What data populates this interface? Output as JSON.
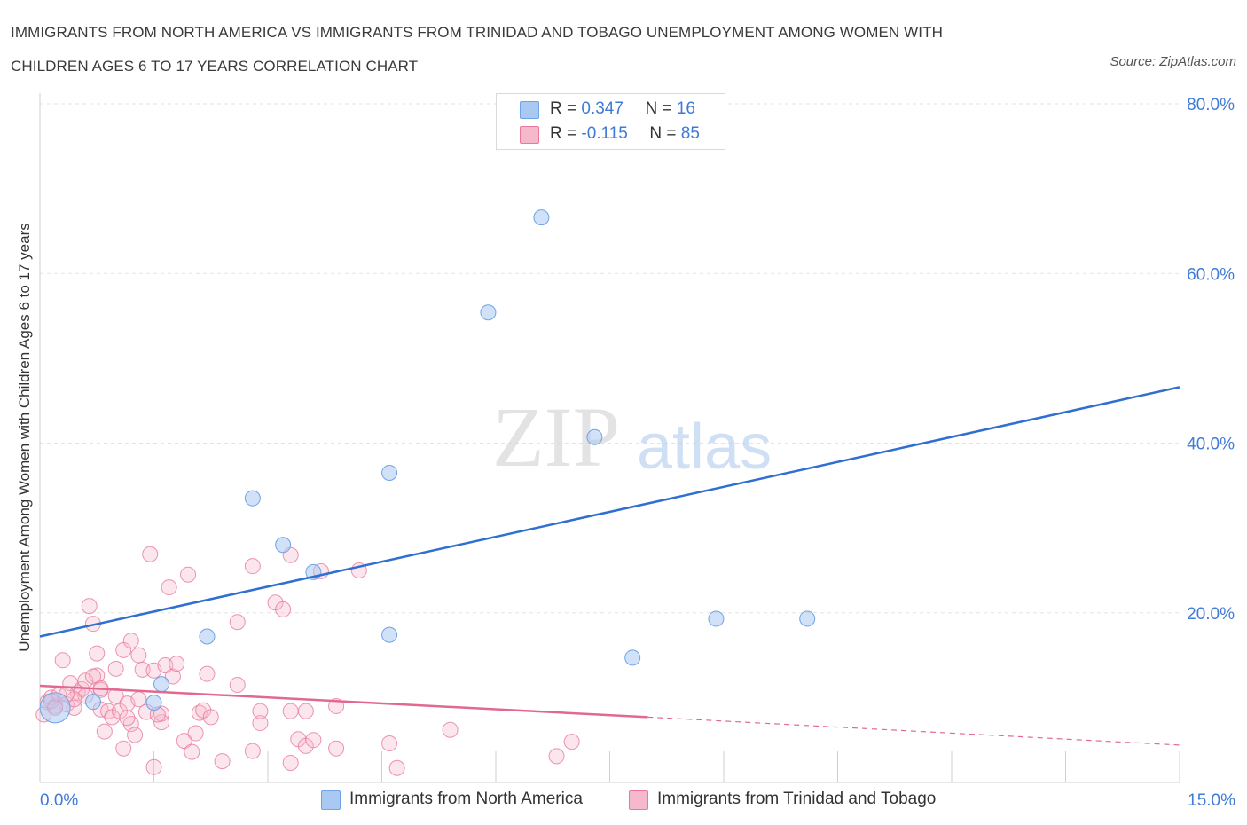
{
  "header": {
    "title_line1": "IMMIGRANTS FROM NORTH AMERICA VS IMMIGRANTS FROM TRINIDAD AND TOBAGO UNEMPLOYMENT AMONG WOMEN WITH",
    "title_line2": "CHILDREN AGES 6 TO 17 YEARS CORRELATION CHART",
    "source": "Source: ZipAtlas.com"
  },
  "watermark": {
    "zip": "ZIP",
    "atlas": "atlas"
  },
  "legend_top": [
    {
      "r_label": "R = ",
      "r_value": "0.347",
      "n_label": "N = ",
      "n_value": "16",
      "color": "#a9c8f2"
    },
    {
      "r_label": "R = ",
      "r_value": "-0.115",
      "n_label": "N = ",
      "n_value": "85",
      "color": "#f6b8cb"
    }
  ],
  "legend_bottom": [
    {
      "label": "Immigrants from North America",
      "color": "#a9c8f2"
    },
    {
      "label": "Immigrants from Trinidad and Tobago",
      "color": "#f6b8cb"
    }
  ],
  "chart_data": {
    "type": "scatter",
    "ylabel": "Unemployment Among Women with Children Ages 6 to 17 years",
    "xlabel": "",
    "xlim": [
      0,
      15
    ],
    "ylim": [
      0,
      80
    ],
    "x_tick_labels": [
      "0.0%",
      "15.0%"
    ],
    "y_tick_labels": [
      "20.0%",
      "40.0%",
      "60.0%",
      "80.0%"
    ],
    "y_ticks": [
      20,
      40,
      60,
      80
    ],
    "grid": true,
    "series": [
      {
        "name": "Immigrants from North America",
        "color": "#6fa3e6",
        "fill": "rgba(169,200,242,0.55)",
        "points": [
          [
            0.2,
            8.8
          ],
          [
            1.5,
            9.4
          ],
          [
            1.6,
            11.6
          ],
          [
            2.2,
            17.2
          ],
          [
            2.8,
            33.5
          ],
          [
            3.2,
            28.0
          ],
          [
            3.6,
            24.8
          ],
          [
            4.6,
            17.4
          ],
          [
            4.6,
            36.5
          ],
          [
            5.9,
            55.4
          ],
          [
            6.6,
            66.6
          ],
          [
            7.3,
            40.7
          ],
          [
            7.8,
            14.7
          ],
          [
            8.9,
            19.3
          ],
          [
            10.1,
            19.3
          ],
          [
            0.7,
            9.5
          ]
        ],
        "trend": {
          "x": [
            0,
            15
          ],
          "y": [
            17.2,
            46.6
          ],
          "extend_dashed": false
        }
      },
      {
        "name": "Immigrants from Trinidad and Tobago",
        "color": "#e8799c",
        "fill": "rgba(246,184,203,0.35)",
        "points": [
          [
            0.05,
            8.0
          ],
          [
            0.1,
            9.5
          ],
          [
            0.15,
            10.0
          ],
          [
            0.2,
            9.0
          ],
          [
            0.25,
            10.3
          ],
          [
            0.3,
            14.4
          ],
          [
            0.35,
            9.2
          ],
          [
            0.4,
            11.7
          ],
          [
            0.45,
            8.8
          ],
          [
            0.5,
            10.6
          ],
          [
            0.55,
            11.0
          ],
          [
            0.6,
            10.2
          ],
          [
            0.6,
            12.0
          ],
          [
            0.65,
            20.8
          ],
          [
            0.7,
            18.7
          ],
          [
            0.75,
            12.6
          ],
          [
            0.75,
            15.2
          ],
          [
            0.8,
            10.9
          ],
          [
            0.8,
            8.6
          ],
          [
            0.85,
            6.0
          ],
          [
            0.9,
            8.4
          ],
          [
            0.95,
            7.7
          ],
          [
            1.0,
            10.2
          ],
          [
            1.0,
            13.4
          ],
          [
            1.05,
            8.4
          ],
          [
            1.1,
            15.6
          ],
          [
            1.1,
            4.0
          ],
          [
            1.15,
            9.3
          ],
          [
            1.2,
            6.9
          ],
          [
            1.2,
            16.7
          ],
          [
            1.25,
            5.6
          ],
          [
            1.3,
            15.0
          ],
          [
            1.35,
            13.3
          ],
          [
            1.4,
            8.3
          ],
          [
            1.45,
            26.9
          ],
          [
            1.5,
            13.2
          ],
          [
            1.5,
            1.8
          ],
          [
            1.6,
            7.1
          ],
          [
            1.65,
            13.8
          ],
          [
            1.7,
            23.0
          ],
          [
            1.75,
            12.5
          ],
          [
            1.8,
            14.0
          ],
          [
            1.9,
            4.9
          ],
          [
            1.95,
            24.5
          ],
          [
            2.0,
            3.6
          ],
          [
            2.05,
            5.8
          ],
          [
            2.1,
            8.2
          ],
          [
            2.15,
            8.5
          ],
          [
            2.2,
            12.8
          ],
          [
            2.25,
            7.7
          ],
          [
            2.4,
            2.5
          ],
          [
            2.6,
            11.5
          ],
          [
            2.6,
            18.9
          ],
          [
            2.8,
            3.7
          ],
          [
            2.8,
            25.5
          ],
          [
            2.9,
            7.0
          ],
          [
            3.1,
            21.2
          ],
          [
            3.2,
            20.4
          ],
          [
            3.3,
            26.8
          ],
          [
            3.3,
            2.3
          ],
          [
            3.4,
            5.1
          ],
          [
            3.5,
            8.4
          ],
          [
            3.5,
            4.3
          ],
          [
            3.6,
            5.0
          ],
          [
            3.7,
            24.9
          ],
          [
            3.9,
            4.0
          ],
          [
            3.9,
            9.0
          ],
          [
            4.2,
            25.0
          ],
          [
            4.6,
            4.6
          ],
          [
            4.7,
            1.7
          ],
          [
            5.4,
            6.2
          ],
          [
            6.8,
            3.1
          ],
          [
            7.0,
            4.8
          ],
          [
            0.15,
            9.6
          ],
          [
            0.45,
            9.8
          ],
          [
            0.7,
            12.5
          ],
          [
            1.3,
            9.8
          ],
          [
            1.6,
            8.1
          ],
          [
            2.9,
            8.4
          ],
          [
            3.3,
            8.4
          ],
          [
            0.2,
            8.8
          ],
          [
            0.35,
            10.4
          ],
          [
            1.15,
            7.6
          ],
          [
            1.55,
            8.0
          ],
          [
            0.8,
            11.1
          ]
        ],
        "trend": {
          "x": [
            0,
            8.0
          ],
          "y": [
            11.4,
            7.7
          ],
          "dashed_to": [
            15,
            4.4
          ]
        }
      }
    ]
  }
}
